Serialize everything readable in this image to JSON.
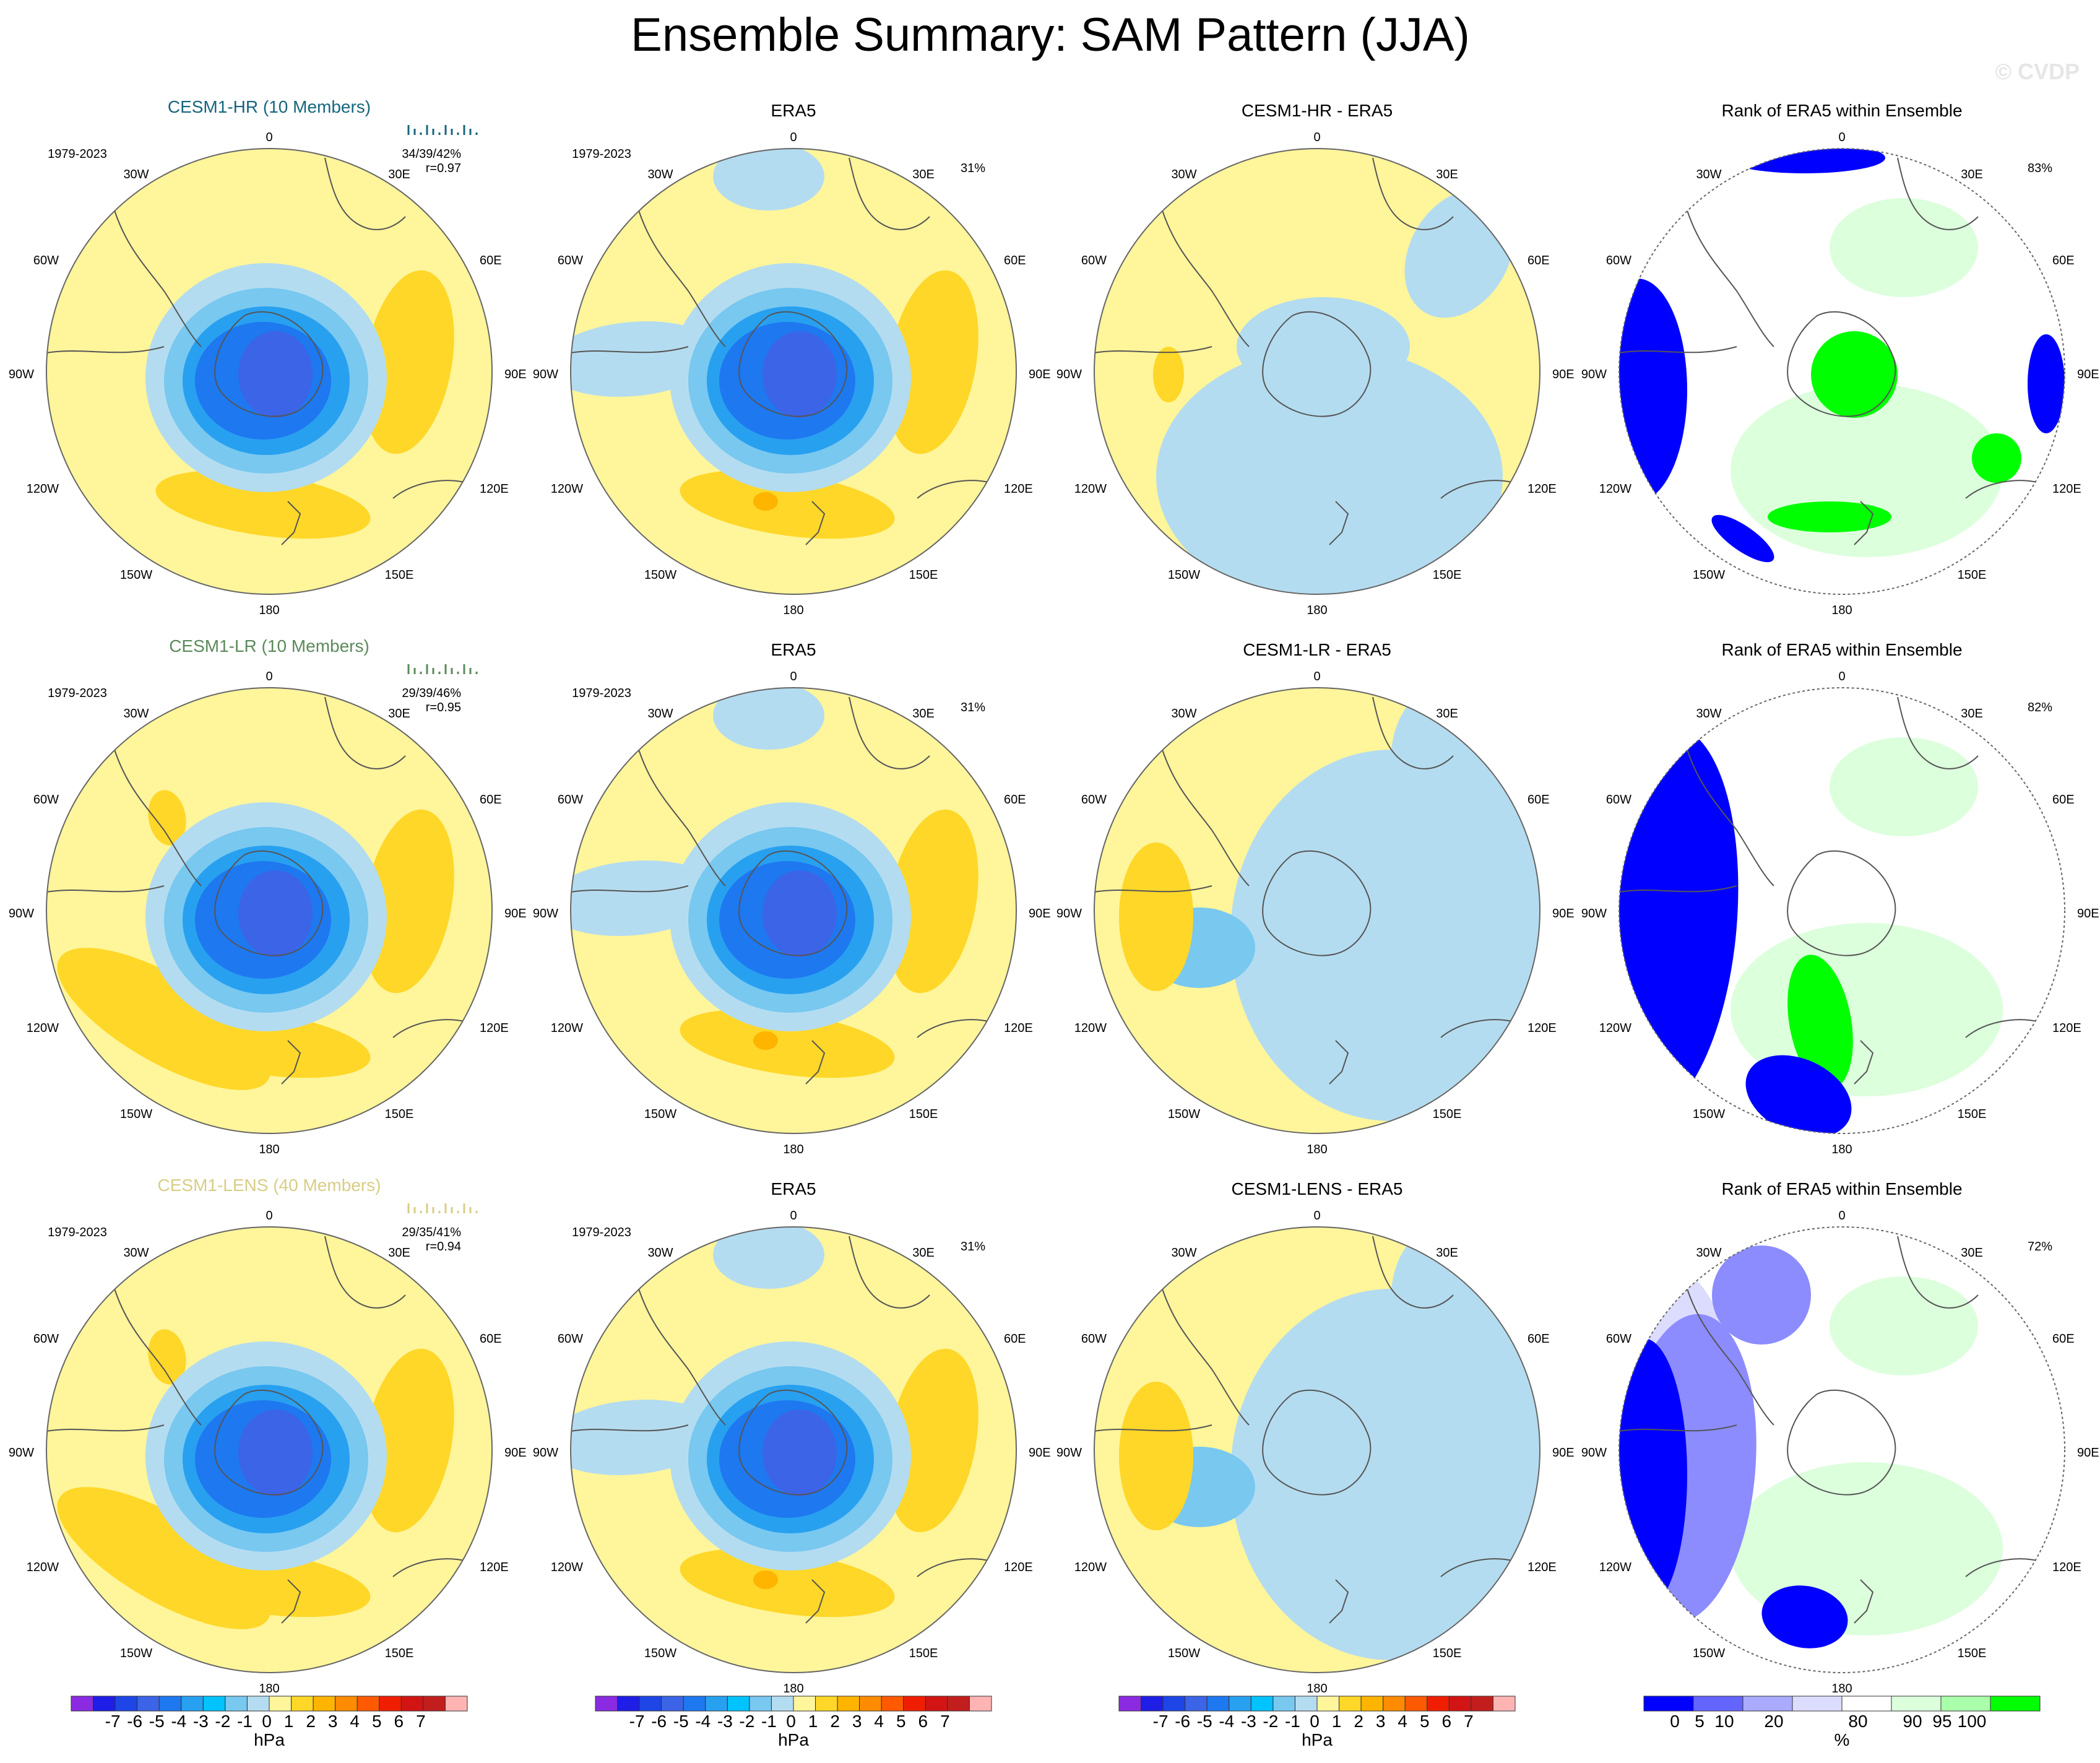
{
  "title": "Ensemble Summary: SAM Pattern (JJA)",
  "watermark": "© CVDP",
  "lon_labels": {
    "top": "0",
    "bottom": "180",
    "upper_left": "30W",
    "upper_right": "30E",
    "left_upper": "60W",
    "right_upper": "60E",
    "left": "90W",
    "right": "90E",
    "left_lower": "120W",
    "right_lower": "120E",
    "lower_left": "150W",
    "lower_right": "150E"
  },
  "rows": [
    {
      "model_title": "CESM1-HR (10 Members)",
      "model_color": "#16667e",
      "period": "1979-2023",
      "stats": "34/39/42%",
      "corr": "r=0.97",
      "era5_title": "ERA5",
      "era5_period": "1979-2023",
      "era5_pct": "31%",
      "diff_title": "CESM1-HR - ERA5",
      "rank_title": "Rank of ERA5 within Ensemble",
      "rank_pct": "83%"
    },
    {
      "model_title": "CESM1-LR (10 Members)",
      "model_color": "#5b8a5b",
      "period": "1979-2023",
      "stats": "29/39/46%",
      "corr": "r=0.95",
      "era5_title": "ERA5",
      "era5_period": "1979-2023",
      "era5_pct": "31%",
      "diff_title": "CESM1-LR - ERA5",
      "rank_title": "Rank of ERA5 within Ensemble",
      "rank_pct": "82%"
    },
    {
      "model_title": "CESM1-LENS (40 Members)",
      "model_color": "#d8cd86",
      "period": "1979-2023",
      "stats": "29/35/41%",
      "corr": "r=0.94",
      "era5_title": "ERA5",
      "era5_period": "1979-2023",
      "era5_pct": "31%",
      "diff_title": "CESM1-LENS - ERA5",
      "rank_title": "Rank of ERA5 within Ensemble",
      "rank_pct": "72%"
    }
  ],
  "hpa_colorbar": {
    "unit": "hPa",
    "labels": [
      "-7",
      "-6",
      "-5",
      "-4",
      "-3",
      "-2",
      "-1",
      "0",
      "1",
      "2",
      "3",
      "4",
      "5",
      "6",
      "7"
    ],
    "colors": [
      "#8a2be2",
      "#1e1ee6",
      "#1e46e6",
      "#3c64e6",
      "#1e78f0",
      "#28a0f0",
      "#00c3ff",
      "#78c8f0",
      "#b4dcf0",
      "#fff59b",
      "#ffd728",
      "#ffb400",
      "#ff8c00",
      "#ff5a00",
      "#f01e00",
      "#d21414",
      "#c31e1e",
      "#ffb4b4"
    ]
  },
  "rank_colorbar": {
    "unit": "%",
    "labels": [
      "0",
      "5",
      "10",
      "20",
      "80",
      "90",
      "95",
      "100"
    ],
    "colors": [
      "#0000ff",
      "#6464ff",
      "#aaaaff",
      "#dcdcff",
      "#ffffff",
      "#dcffdc",
      "#aaffaa",
      "#00ff00"
    ]
  },
  "colors": {
    "yellow": "#fff59b",
    "yellow_dark": "#ffd728",
    "orange": "#ffb400",
    "blue1": "#b4dcf0",
    "blue2": "#78c8f0",
    "blue3": "#28a0f0",
    "blue4": "#1e78f0",
    "blue5": "#3c64e6",
    "rank_blue": "#0000ff",
    "rank_green": "#00ff00",
    "rank_lightgreen": "#dcffdc",
    "rank_lavender": "#dcdcff"
  }
}
